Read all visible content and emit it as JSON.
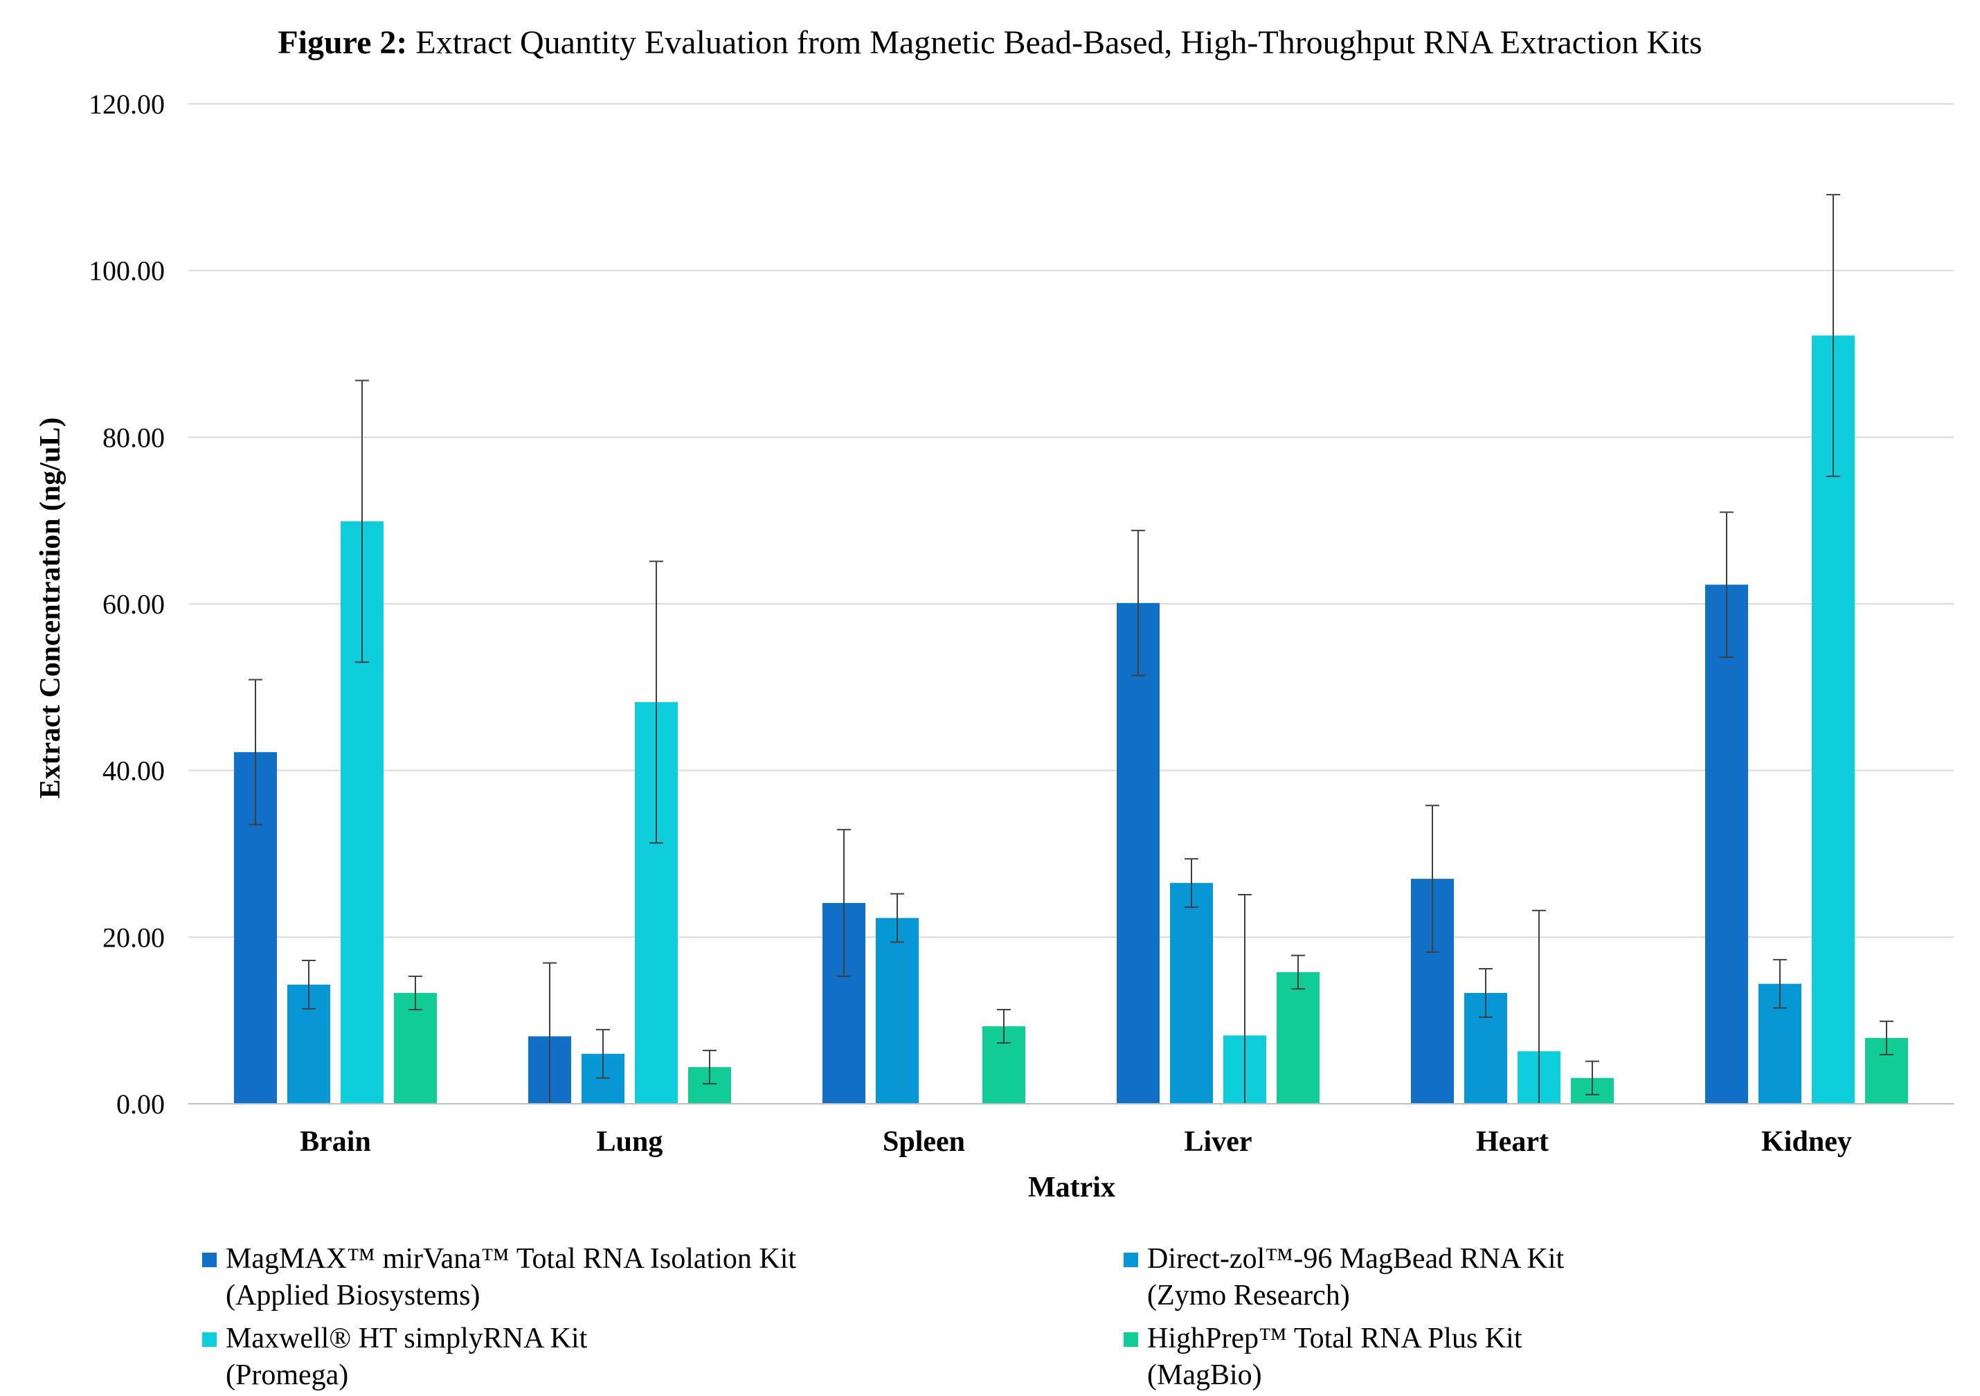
{
  "title": {
    "lead": "Figure 2:",
    "text": " Extract Quantity Evaluation from Magnetic Bead-Based, High-Throughput RNA Extraction Kits"
  },
  "chart_data": {
    "type": "bar",
    "xlabel": "Matrix",
    "ylabel": "Extract Concentration (ng/uL)",
    "ylim": [
      0,
      120
    ],
    "yticks": [
      "0.00",
      "20.00",
      "40.00",
      "60.00",
      "80.00",
      "100.00",
      "120.00"
    ],
    "grid": true,
    "legend_position": "bottom",
    "categories": [
      "Brain",
      "Lung",
      "Spleen",
      "Liver",
      "Heart",
      "Kidney"
    ],
    "series": [
      {
        "name": "MagMAX™ mirVana™ Total RNA Isolation Kit (Applied Biosystems)",
        "legend_lines": [
          "MagMAX™ mirVana™ Total RNA Isolation Kit",
          "(Applied Biosystems)"
        ],
        "color": "#1170C5",
        "values": [
          42.2,
          8.1,
          24.1,
          60.1,
          27.0,
          62.3
        ],
        "errors": [
          8.7,
          8.8,
          8.8,
          8.7,
          8.8,
          8.7
        ]
      },
      {
        "name": "Direct-zol™-96 MagBead RNA Kit (Zymo Research)",
        "legend_lines": [
          "Direct-zol™-96 MagBead RNA Kit",
          "(Zymo Research)"
        ],
        "color": "#0897D5",
        "values": [
          14.3,
          6.0,
          22.3,
          26.5,
          13.3,
          14.4
        ],
        "errors": [
          2.9,
          2.9,
          2.9,
          2.9,
          2.9,
          2.9
        ]
      },
      {
        "name": "Maxwell® HT simplyRNA Kit (Promega)",
        "legend_lines": [
          "Maxwell® HT simplyRNA Kit",
          "(Promega)"
        ],
        "color": "#0DCEDA",
        "values": [
          69.9,
          48.2,
          null,
          8.2,
          6.3,
          92.2
        ],
        "errors": [
          16.9,
          16.9,
          null,
          16.9,
          16.9,
          16.9
        ]
      },
      {
        "name": "HighPrep™ Total RNA Plus Kit (MagBio)",
        "legend_lines": [
          "HighPrep™ Total RNA Plus Kit",
          "(MagBio)"
        ],
        "color": "#12CC96",
        "values": [
          13.3,
          4.4,
          9.3,
          15.8,
          3.1,
          7.9
        ],
        "errors": [
          2.0,
          2.0,
          2.0,
          2.0,
          2.0,
          2.0
        ]
      }
    ]
  }
}
